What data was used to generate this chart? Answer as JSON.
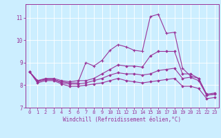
{
  "xlabel": "Windchill (Refroidissement éolien,°C)",
  "background_color": "#cceeff",
  "line_color": "#993399",
  "grid_color": "#ffffff",
  "xlim": [
    -0.5,
    23.5
  ],
  "ylim": [
    7.0,
    11.6
  ],
  "yticks": [
    7,
    8,
    9,
    10,
    11
  ],
  "xticks": [
    0,
    1,
    2,
    3,
    4,
    5,
    6,
    7,
    8,
    9,
    10,
    11,
    12,
    13,
    14,
    15,
    16,
    17,
    18,
    19,
    20,
    21,
    22,
    23
  ],
  "line1_y": [
    8.6,
    8.2,
    8.25,
    8.25,
    8.15,
    8.1,
    8.1,
    9.0,
    8.85,
    9.1,
    9.55,
    9.8,
    9.7,
    9.55,
    9.5,
    11.05,
    11.15,
    10.3,
    10.35,
    8.75,
    8.4,
    8.3,
    7.55,
    7.6
  ],
  "line2_y": [
    8.6,
    8.2,
    8.3,
    8.3,
    8.2,
    8.15,
    8.2,
    8.2,
    8.3,
    8.5,
    8.7,
    8.9,
    8.85,
    8.85,
    8.8,
    9.3,
    9.5,
    9.5,
    9.5,
    8.5,
    8.5,
    8.3,
    7.6,
    7.65
  ],
  "line3_y": [
    8.6,
    8.15,
    8.25,
    8.25,
    8.1,
    8.05,
    8.05,
    8.1,
    8.2,
    8.3,
    8.45,
    8.55,
    8.5,
    8.5,
    8.45,
    8.5,
    8.65,
    8.7,
    8.75,
    8.3,
    8.35,
    8.2,
    7.55,
    7.6
  ],
  "line4_y": [
    8.6,
    8.1,
    8.2,
    8.2,
    8.05,
    7.95,
    7.95,
    8.0,
    8.05,
    8.1,
    8.2,
    8.3,
    8.2,
    8.15,
    8.1,
    8.15,
    8.2,
    8.25,
    8.3,
    7.95,
    7.95,
    7.85,
    7.4,
    7.45
  ]
}
